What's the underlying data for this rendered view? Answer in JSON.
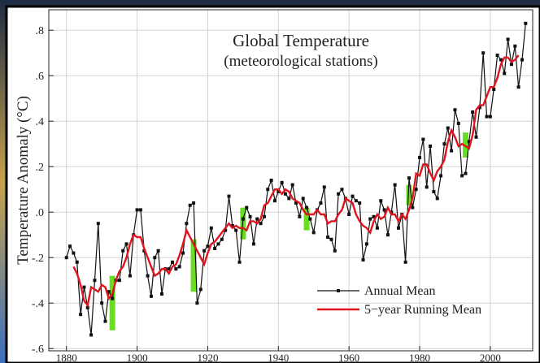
{
  "chart_data": {
    "type": "line",
    "title": "Global Temperature",
    "subtitle": "(meteorological stations)",
    "y_label": "Temperature Anomaly (°C)",
    "x": [
      1880,
      1881,
      1882,
      1883,
      1884,
      1885,
      1886,
      1887,
      1888,
      1889,
      1890,
      1891,
      1892,
      1893,
      1894,
      1895,
      1896,
      1897,
      1898,
      1899,
      1900,
      1901,
      1902,
      1903,
      1904,
      1905,
      1906,
      1907,
      1908,
      1909,
      1910,
      1911,
      1912,
      1913,
      1914,
      1915,
      1916,
      1917,
      1918,
      1919,
      1920,
      1921,
      1922,
      1923,
      1924,
      1925,
      1926,
      1927,
      1928,
      1929,
      1930,
      1931,
      1932,
      1933,
      1934,
      1935,
      1936,
      1937,
      1938,
      1939,
      1940,
      1941,
      1942,
      1943,
      1944,
      1945,
      1946,
      1947,
      1948,
      1949,
      1950,
      1951,
      1952,
      1953,
      1954,
      1955,
      1956,
      1957,
      1958,
      1959,
      1960,
      1961,
      1962,
      1963,
      1964,
      1965,
      1966,
      1967,
      1968,
      1969,
      1970,
      1971,
      1972,
      1973,
      1974,
      1975,
      1976,
      1977,
      1978,
      1979,
      1980,
      1981,
      1982,
      1983,
      1984,
      1985,
      1986,
      1987,
      1988,
      1989,
      1990,
      1991,
      1992,
      1993,
      1994,
      1995,
      1996,
      1997,
      1998,
      1999,
      2000,
      2001,
      2002,
      2003,
      2004,
      2005,
      2006,
      2007,
      2008,
      2009,
      2010
    ],
    "series": [
      {
        "name": "Annual Mean",
        "color": "#111111",
        "marker": true,
        "values": [
          -0.2,
          -0.15,
          -0.18,
          -0.22,
          -0.45,
          -0.33,
          -0.42,
          -0.54,
          -0.3,
          -0.05,
          -0.4,
          -0.48,
          -0.35,
          -0.38,
          -0.3,
          -0.3,
          -0.17,
          -0.14,
          -0.28,
          -0.1,
          0.01,
          0.01,
          -0.17,
          -0.28,
          -0.37,
          -0.2,
          -0.17,
          -0.36,
          -0.25,
          -0.25,
          -0.22,
          -0.25,
          -0.24,
          -0.18,
          -0.05,
          0.03,
          0.04,
          -0.4,
          -0.34,
          -0.17,
          -0.15,
          -0.07,
          -0.16,
          -0.14,
          -0.12,
          -0.08,
          0.07,
          -0.06,
          -0.08,
          -0.22,
          -0.03,
          0.02,
          -0.02,
          -0.14,
          -0.03,
          -0.05,
          -0.02,
          0.1,
          0.14,
          0.05,
          0.09,
          0.13,
          0.08,
          0.06,
          0.12,
          0.04,
          -0.02,
          0.06,
          0.02,
          -0.03,
          -0.09,
          0.01,
          0.04,
          0.11,
          -0.11,
          -0.12,
          -0.17,
          0.08,
          0.1,
          0.06,
          -0.01,
          0.07,
          0.05,
          0.04,
          -0.21,
          -0.14,
          -0.03,
          -0.02,
          -0.07,
          0.05,
          0.01,
          -0.1,
          0.0,
          0.12,
          -0.07,
          -0.01,
          -0.22,
          0.15,
          0.02,
          0.1,
          0.24,
          0.32,
          0.11,
          0.29,
          0.09,
          0.06,
          0.16,
          0.3,
          0.37,
          0.27,
          0.45,
          0.39,
          0.16,
          0.17,
          0.31,
          0.44,
          0.33,
          0.46,
          0.7,
          0.42,
          0.42,
          0.54,
          0.69,
          0.67,
          0.61,
          0.76,
          0.65,
          0.73,
          0.55,
          0.67,
          0.83
        ]
      },
      {
        "name": "5−year Running Mean",
        "color": "#e0141e",
        "marker": false,
        "values": [
          null,
          null,
          -0.24,
          -0.27,
          -0.32,
          -0.39,
          -0.41,
          -0.33,
          -0.34,
          -0.35,
          -0.32,
          -0.33,
          -0.38,
          -0.36,
          -0.3,
          -0.26,
          -0.24,
          -0.2,
          -0.14,
          -0.1,
          -0.11,
          -0.11,
          -0.16,
          -0.2,
          -0.24,
          -0.28,
          -0.27,
          -0.25,
          -0.25,
          -0.27,
          -0.24,
          -0.23,
          -0.19,
          -0.14,
          -0.08,
          -0.11,
          -0.14,
          -0.17,
          -0.2,
          -0.23,
          -0.18,
          -0.14,
          -0.13,
          -0.11,
          -0.09,
          -0.07,
          -0.05,
          -0.07,
          -0.06,
          -0.07,
          -0.07,
          -0.08,
          -0.04,
          -0.04,
          -0.05,
          -0.03,
          0.03,
          0.04,
          0.07,
          0.1,
          0.1,
          0.08,
          0.1,
          0.09,
          0.06,
          0.05,
          0.04,
          0.01,
          -0.01,
          -0.01,
          -0.01,
          0.01,
          -0.01,
          -0.01,
          -0.05,
          -0.04,
          -0.04,
          -0.01,
          0.01,
          0.06,
          0.05,
          0.04,
          -0.01,
          -0.04,
          -0.06,
          -0.07,
          -0.09,
          -0.04,
          -0.01,
          -0.03,
          -0.02,
          0.02,
          -0.01,
          -0.01,
          -0.04,
          -0.01,
          -0.03,
          0.01,
          0.06,
          0.17,
          0.16,
          0.21,
          0.21,
          0.17,
          0.14,
          0.18,
          0.2,
          0.23,
          0.31,
          0.36,
          0.33,
          0.29,
          0.3,
          0.29,
          0.28,
          0.34,
          0.45,
          0.47,
          0.47,
          0.51,
          0.55,
          0.55,
          0.59,
          0.65,
          0.68,
          0.68,
          0.66,
          0.67,
          0.69,
          null,
          null
        ]
      }
    ],
    "highlights": {
      "color": "#66e01e",
      "x": [
        1893,
        1916,
        1930,
        1948,
        1977,
        1993
      ],
      "ylow": [
        -0.52,
        -0.35,
        -0.12,
        -0.08,
        0.03,
        0.24
      ],
      "yhigh": [
        -0.28,
        -0.12,
        0.02,
        0.02,
        0.12,
        0.35
      ]
    },
    "xlim": [
      1875,
      2012
    ],
    "ylim": [
      -0.61,
      0.89
    ],
    "xticks": [
      1880,
      1900,
      1920,
      1940,
      1960,
      1980,
      2000
    ],
    "yticks": [
      {
        "value": -0.6,
        "label": "-.6"
      },
      {
        "value": -0.4,
        "label": "-.4"
      },
      {
        "value": -0.2,
        "label": "-.2"
      },
      {
        "value": 0,
        "label": ".0"
      },
      {
        "value": 0.2,
        "label": ".2"
      },
      {
        "value": 0.4,
        "label": ".4"
      },
      {
        "value": 0.6,
        "label": ".6"
      },
      {
        "value": 0.8,
        "label": ".8"
      }
    ],
    "grid": true,
    "legend": "lower right"
  }
}
